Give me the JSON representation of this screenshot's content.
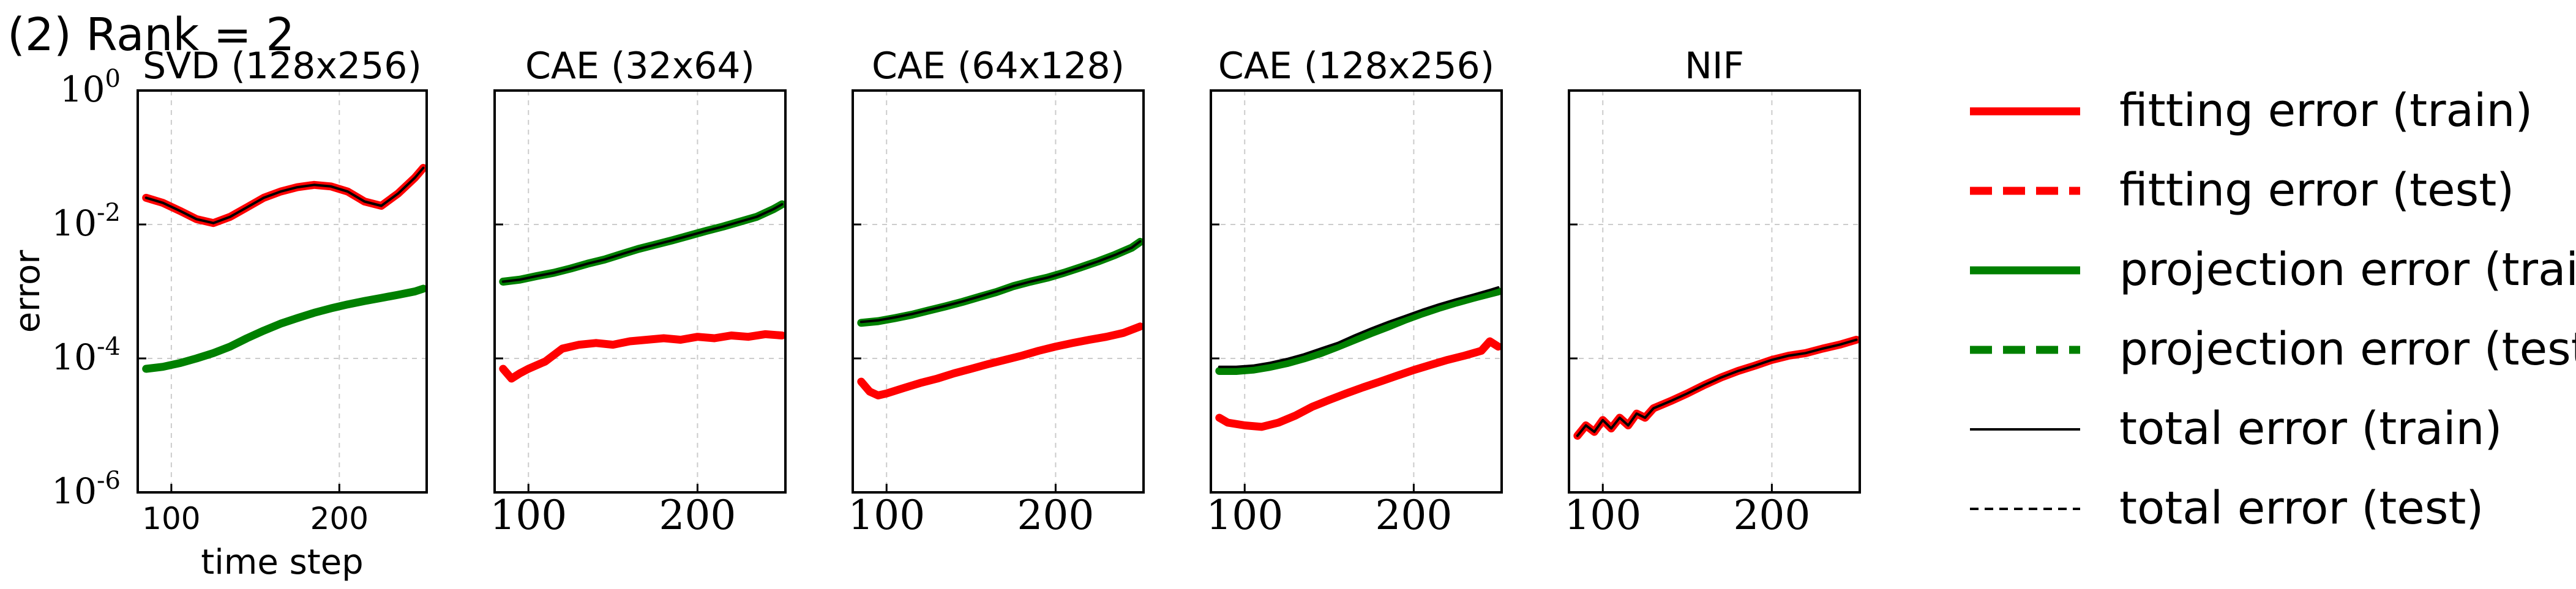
{
  "figure_label": "(2) Rank = 2",
  "colors": {
    "fitting": "#ff0000",
    "projection": "#008000",
    "total": "#000000",
    "grid": "#cccccc"
  },
  "legend": {
    "placement": "right",
    "items": [
      {
        "label": "fitting error (train)",
        "color": "#ff0000",
        "style": "solid",
        "weight": "thick"
      },
      {
        "label": "fitting error (test)",
        "color": "#ff0000",
        "style": "dashed",
        "weight": "thick"
      },
      {
        "label": "projection error (train)",
        "color": "#008000",
        "style": "solid",
        "weight": "thick"
      },
      {
        "label": "projection error (test)",
        "color": "#008000",
        "style": "dashed",
        "weight": "thick"
      },
      {
        "label": "total error (train)",
        "color": "#000000",
        "style": "solid",
        "weight": "thin"
      },
      {
        "label": "total error (test)",
        "color": "#000000",
        "style": "dashed",
        "weight": "thin"
      }
    ]
  },
  "chart_data": [
    {
      "type": "line",
      "title": "SVD (128x256)",
      "xlabel": "time step",
      "ylabel": "error",
      "xlim": [
        80,
        252
      ],
      "ylim": [
        1e-06,
        1
      ],
      "yscale": "log",
      "xticks": [
        100,
        200
      ],
      "yticks": [
        1e-06,
        0.0001,
        0.01,
        1
      ],
      "ytick_labels": [
        "10^-6",
        "10^-4",
        "10^-2",
        "10^0"
      ],
      "grid": true,
      "series": [
        {
          "name": "fitting error (train)",
          "x": [
            85,
            95,
            105,
            115,
            125,
            135,
            145,
            155,
            165,
            175,
            185,
            195,
            205,
            215,
            225,
            235,
            245,
            250
          ],
          "y": [
            0.025,
            0.021,
            0.016,
            0.012,
            0.0105,
            0.013,
            0.018,
            0.025,
            0.031,
            0.036,
            0.039,
            0.037,
            0.031,
            0.022,
            0.019,
            0.029,
            0.05,
            0.07
          ]
        },
        {
          "name": "projection error (train)",
          "x": [
            85,
            95,
            105,
            115,
            125,
            135,
            145,
            155,
            165,
            175,
            185,
            195,
            205,
            215,
            225,
            235,
            245,
            250
          ],
          "y": [
            7e-05,
            7.5e-05,
            8.5e-05,
            0.0001,
            0.00012,
            0.00015,
            0.0002,
            0.00026,
            0.00033,
            0.0004,
            0.00048,
            0.00056,
            0.00064,
            0.00072,
            0.0008,
            0.00089,
            0.001,
            0.0011
          ]
        },
        {
          "name": "total error (train)",
          "x": [
            85,
            95,
            105,
            115,
            125,
            135,
            145,
            155,
            165,
            175,
            185,
            195,
            205,
            215,
            225,
            235,
            245,
            250
          ],
          "y": [
            0.025,
            0.021,
            0.016,
            0.012,
            0.0105,
            0.013,
            0.018,
            0.025,
            0.031,
            0.036,
            0.039,
            0.037,
            0.031,
            0.022,
            0.019,
            0.029,
            0.05,
            0.07
          ]
        }
      ]
    },
    {
      "type": "line",
      "title": "CAE (32x64)",
      "xlim": [
        80,
        252
      ],
      "ylim": [
        1e-06,
        1
      ],
      "yscale": "log",
      "xticks": [
        100,
        200
      ],
      "grid": true,
      "series": [
        {
          "name": "fitting error (train)",
          "x": [
            85,
            90,
            95,
            100,
            110,
            120,
            130,
            140,
            150,
            160,
            170,
            180,
            190,
            200,
            210,
            220,
            230,
            240,
            250
          ],
          "y": [
            7e-05,
            5e-05,
            6e-05,
            7e-05,
            9e-05,
            0.00014,
            0.00016,
            0.00017,
            0.00016,
            0.00018,
            0.00019,
            0.0002,
            0.00019,
            0.00021,
            0.0002,
            0.00022,
            0.00021,
            0.00023,
            0.00022
          ]
        },
        {
          "name": "projection error (train)",
          "x": [
            85,
            95,
            105,
            115,
            125,
            135,
            145,
            155,
            165,
            175,
            185,
            195,
            205,
            215,
            225,
            235,
            245,
            250
          ],
          "y": [
            0.0014,
            0.0015,
            0.0017,
            0.0019,
            0.0022,
            0.0026,
            0.003,
            0.0036,
            0.0043,
            0.005,
            0.0058,
            0.0068,
            0.008,
            0.0093,
            0.011,
            0.013,
            0.017,
            0.02
          ]
        },
        {
          "name": "total error (train)",
          "x": [
            85,
            95,
            105,
            115,
            125,
            135,
            145,
            155,
            165,
            175,
            185,
            195,
            205,
            215,
            225,
            235,
            245,
            250
          ],
          "y": [
            0.0014,
            0.0015,
            0.0017,
            0.0019,
            0.0022,
            0.0026,
            0.003,
            0.0036,
            0.0043,
            0.005,
            0.0058,
            0.0068,
            0.008,
            0.0093,
            0.011,
            0.013,
            0.017,
            0.02
          ]
        }
      ]
    },
    {
      "type": "line",
      "title": "CAE (64x128)",
      "xlim": [
        80,
        252
      ],
      "ylim": [
        1e-06,
        1
      ],
      "yscale": "log",
      "xticks": [
        100,
        200
      ],
      "grid": true,
      "series": [
        {
          "name": "fitting error (train)",
          "x": [
            85,
            90,
            95,
            100,
            110,
            120,
            130,
            140,
            150,
            160,
            170,
            180,
            190,
            200,
            210,
            220,
            230,
            240,
            250
          ],
          "y": [
            4.5e-05,
            3.2e-05,
            2.8e-05,
            3e-05,
            3.6e-05,
            4.3e-05,
            5e-05,
            6e-05,
            7e-05,
            8.2e-05,
            9.5e-05,
            0.00011,
            0.00013,
            0.00015,
            0.00017,
            0.00019,
            0.00021,
            0.00024,
            0.0003
          ]
        },
        {
          "name": "projection error (train)",
          "x": [
            85,
            95,
            105,
            115,
            125,
            135,
            145,
            155,
            165,
            175,
            185,
            195,
            205,
            215,
            225,
            235,
            245,
            250
          ],
          "y": [
            0.00034,
            0.00036,
            0.0004,
            0.00045,
            0.00052,
            0.0006,
            0.0007,
            0.00083,
            0.00098,
            0.0012,
            0.0014,
            0.0016,
            0.0019,
            0.0023,
            0.0028,
            0.0035,
            0.0045,
            0.0055
          ]
        },
        {
          "name": "total error (train)",
          "x": [
            85,
            95,
            105,
            115,
            125,
            135,
            145,
            155,
            165,
            175,
            185,
            195,
            205,
            215,
            225,
            235,
            245,
            250
          ],
          "y": [
            0.00035,
            0.00037,
            0.00041,
            0.00046,
            0.00053,
            0.00061,
            0.00071,
            0.00084,
            0.001,
            0.0012,
            0.0014,
            0.0016,
            0.0019,
            0.0023,
            0.0028,
            0.0035,
            0.0045,
            0.0056
          ]
        }
      ]
    },
    {
      "type": "line",
      "title": "CAE (128x256)",
      "xlim": [
        80,
        252
      ],
      "ylim": [
        1e-06,
        1
      ],
      "yscale": "log",
      "xticks": [
        100,
        200
      ],
      "grid": true,
      "series": [
        {
          "name": "fitting error (train)",
          "x": [
            85,
            90,
            100,
            110,
            120,
            130,
            140,
            150,
            160,
            170,
            180,
            190,
            200,
            210,
            220,
            230,
            240,
            245,
            250
          ],
          "y": [
            1.3e-05,
            1.1e-05,
            1e-05,
            9.5e-06,
            1.1e-05,
            1.4e-05,
            1.9e-05,
            2.4e-05,
            3e-05,
            3.7e-05,
            4.5e-05,
            5.5e-05,
            6.7e-05,
            8e-05,
            9.5e-05,
            0.00011,
            0.00013,
            0.00018,
            0.00015
          ]
        },
        {
          "name": "projection error (train)",
          "x": [
            85,
            95,
            105,
            115,
            125,
            135,
            145,
            155,
            165,
            175,
            185,
            195,
            205,
            215,
            225,
            235,
            245,
            250
          ],
          "y": [
            6.5e-05,
            6.5e-05,
            6.8e-05,
            7.5e-05,
            8.5e-05,
            0.0001,
            0.00012,
            0.00015,
            0.00019,
            0.00024,
            0.0003,
            0.00038,
            0.00047,
            0.00057,
            0.00068,
            0.0008,
            0.00093,
            0.001
          ]
        },
        {
          "name": "total error (train)",
          "x": [
            85,
            95,
            105,
            115,
            125,
            135,
            145,
            155,
            165,
            175,
            185,
            195,
            205,
            215,
            225,
            235,
            245,
            250
          ],
          "y": [
            7.5e-05,
            7.5e-05,
            7.8e-05,
            8.6e-05,
            9.8e-05,
            0.000115,
            0.00014,
            0.00017,
            0.00022,
            0.00028,
            0.00035,
            0.00043,
            0.00053,
            0.00064,
            0.00076,
            0.00089,
            0.00105,
            0.00115
          ]
        }
      ]
    },
    {
      "type": "line",
      "title": "NIF",
      "xlim": [
        80,
        252
      ],
      "ylim": [
        1e-06,
        1
      ],
      "yscale": "log",
      "xticks": [
        100,
        200
      ],
      "grid": true,
      "series": [
        {
          "name": "fitting error (train)",
          "x": [
            85,
            90,
            95,
            100,
            105,
            110,
            115,
            120,
            125,
            130,
            140,
            150,
            160,
            170,
            180,
            190,
            200,
            210,
            220,
            230,
            240,
            250
          ],
          "y": [
            7e-06,
            1e-05,
            8e-06,
            1.2e-05,
            9e-06,
            1.3e-05,
            1e-05,
            1.5e-05,
            1.3e-05,
            1.8e-05,
            2.3e-05,
            3e-05,
            4e-05,
            5.2e-05,
            6.5e-05,
            7.8e-05,
            9.5e-05,
            0.00011,
            0.00012,
            0.00014,
            0.00016,
            0.00019
          ]
        },
        {
          "name": "total error (train)",
          "x": [
            85,
            90,
            95,
            100,
            105,
            110,
            115,
            120,
            125,
            130,
            140,
            150,
            160,
            170,
            180,
            190,
            200,
            210,
            220,
            230,
            240,
            250
          ],
          "y": [
            7e-06,
            1e-05,
            8e-06,
            1.2e-05,
            9e-06,
            1.3e-05,
            1e-05,
            1.5e-05,
            1.3e-05,
            1.8e-05,
            2.3e-05,
            3e-05,
            4e-05,
            5.2e-05,
            6.5e-05,
            7.8e-05,
            9.5e-05,
            0.00011,
            0.00012,
            0.00014,
            0.00016,
            0.00019
          ]
        }
      ]
    }
  ]
}
